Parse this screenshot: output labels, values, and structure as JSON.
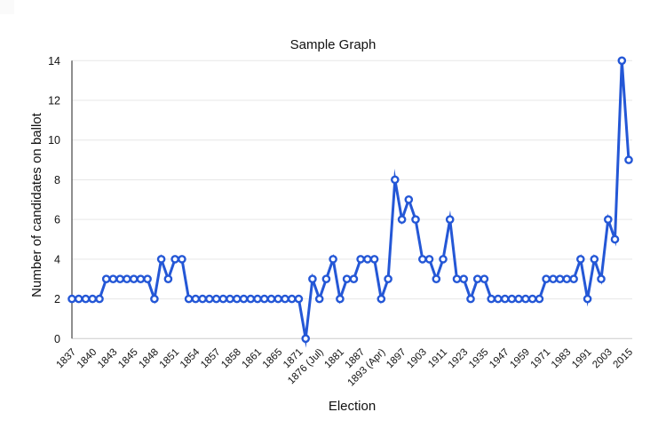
{
  "page": {
    "background": "#ffffff"
  },
  "chart_data": {
    "type": "line",
    "title": "Sample Graph",
    "xlabel": "Election",
    "ylabel": "Number of candidates on ballot",
    "ylim": [
      0,
      14
    ],
    "y_ticks": [
      0,
      2,
      4,
      6,
      8,
      10,
      12,
      14
    ],
    "grid": true,
    "legend": "none",
    "marker": "hollow-circle",
    "label_every": 3,
    "x_tick_labels": [
      "1837",
      "1840",
      "1843",
      "1845",
      "1848",
      "1851",
      "1854",
      "1857",
      "1858",
      "1861",
      "1865",
      "1871",
      "1876 (Jul)",
      "1881",
      "1887",
      "1893 (Apr)",
      "1897",
      "1903",
      "1911",
      "1923",
      "1935",
      "1947",
      "1959",
      "1971",
      "1983",
      "1991",
      "2003",
      "2015"
    ],
    "values": [
      2,
      2,
      2,
      2,
      2,
      3,
      3,
      3,
      3,
      3,
      3,
      3,
      2,
      4,
      3,
      4,
      4,
      2,
      2,
      2,
      2,
      2,
      2,
      2,
      2,
      2,
      2,
      2,
      2,
      2,
      2,
      2,
      2,
      2,
      0,
      3,
      2,
      3,
      4,
      2,
      3,
      3,
      4,
      4,
      4,
      2,
      3,
      8,
      6,
      7,
      6,
      4,
      4,
      3,
      4,
      6,
      3,
      3,
      2,
      3,
      3,
      2,
      2,
      2,
      2,
      2,
      2,
      2,
      2,
      3,
      3,
      3,
      3,
      3,
      4,
      2,
      4,
      3,
      6,
      5,
      14,
      9
    ],
    "labeled_point_values": {
      "1837": 2,
      "1840": 2,
      "1843": 3,
      "1845": 3,
      "1848": 2,
      "1851": 4,
      "1854": 2,
      "1857": 2,
      "1858": 2,
      "1861": 2,
      "1865": 2,
      "1871": 2,
      "1876 (Jul)": 3,
      "1881": 4,
      "1887": 4,
      "1893 (Apr)": 4,
      "1897": 8,
      "1903": 6,
      "1911": 3,
      "1923": 3,
      "1935": 3,
      "1947": 2,
      "1959": 2,
      "1971": 2,
      "1983": 3,
      "1991": 4,
      "2003": 3,
      "2015": 14
    },
    "colors": {
      "line": "#2457d6",
      "marker_fill": "#ffffff",
      "grid": "#e7e7e7",
      "baseline": "#cccccc",
      "axis": "#444444",
      "text": "#111111"
    }
  }
}
